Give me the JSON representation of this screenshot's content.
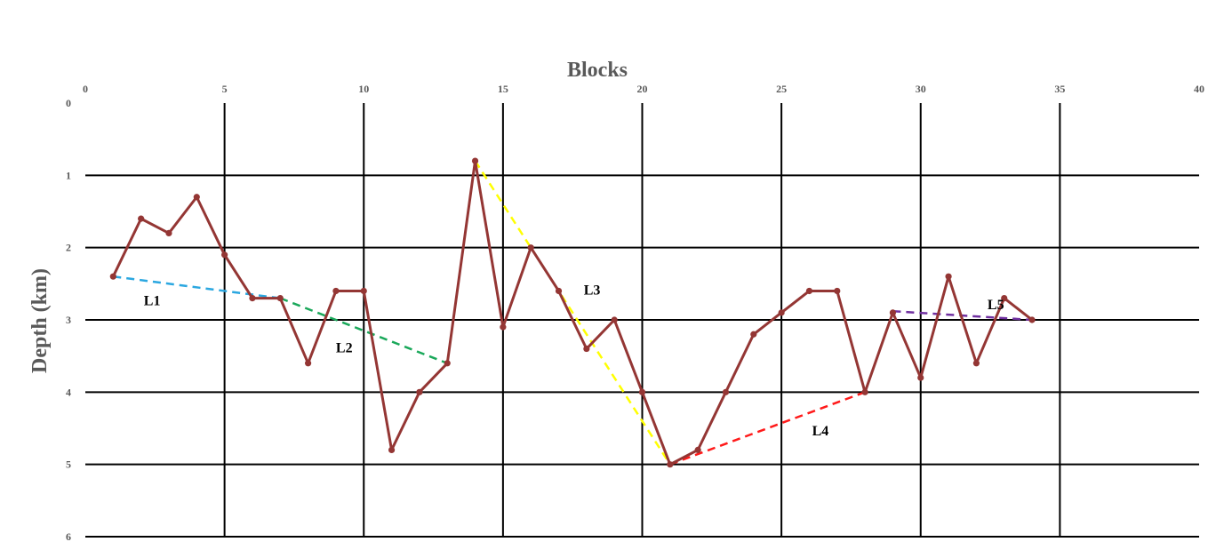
{
  "chart_data": {
    "type": "line",
    "xlabel": "Blocks",
    "ylabel": "Depth (km)",
    "xlim": [
      0,
      40
    ],
    "ylim": [
      0,
      6
    ],
    "y_reversed": true,
    "x_axis_position": "top",
    "x_ticks": [
      0,
      5,
      10,
      15,
      20,
      25,
      30,
      35,
      40
    ],
    "y_ticks": [
      0,
      1,
      2,
      3,
      4,
      5,
      6
    ],
    "grid": true,
    "series": [
      {
        "color": "#943634",
        "points": [
          [
            1,
            2.4
          ],
          [
            2,
            1.6
          ],
          [
            3,
            1.8
          ],
          [
            4,
            1.3
          ],
          [
            5,
            2.1
          ],
          [
            6,
            2.7
          ],
          [
            7,
            2.7
          ],
          [
            8,
            3.6
          ],
          [
            9,
            2.6
          ],
          [
            10,
            2.6
          ],
          [
            11,
            4.8
          ],
          [
            12,
            4.0
          ],
          [
            13,
            3.6
          ],
          [
            14,
            0.8
          ],
          [
            15,
            3.1
          ],
          [
            16,
            2.0
          ],
          [
            17,
            2.6
          ],
          [
            18,
            3.4
          ],
          [
            19,
            3.0
          ],
          [
            20,
            4.0
          ],
          [
            21,
            5.0
          ],
          [
            22,
            4.8
          ],
          [
            23,
            4.0
          ],
          [
            24,
            3.2
          ],
          [
            25,
            2.9
          ],
          [
            26,
            2.6
          ],
          [
            27,
            2.6
          ],
          [
            28,
            4.0
          ],
          [
            29,
            2.9
          ],
          [
            30,
            3.8
          ],
          [
            31,
            2.4
          ],
          [
            32,
            3.6
          ],
          [
            33,
            2.7
          ],
          [
            34,
            3.0
          ]
        ]
      }
    ],
    "annotations": [
      {
        "label": "L1",
        "color": "#2BA7E0",
        "dashed": true,
        "from": [
          1,
          2.4
        ],
        "to": [
          7,
          2.7
        ],
        "label_at": [
          2.1,
          2.8
        ]
      },
      {
        "label": "L2",
        "color": "#1AA85A",
        "dashed": true,
        "from": [
          7,
          2.7
        ],
        "to": [
          13,
          3.6
        ],
        "label_at": [
          9,
          3.45
        ]
      },
      {
        "label": "L3",
        "color": "#FFFF00",
        "dashed": true,
        "from": [
          14,
          0.8
        ],
        "to": [
          21,
          5.0
        ],
        "label_at": [
          17.9,
          2.65
        ]
      },
      {
        "label": "L4",
        "color": "#FF1A1A",
        "dashed": true,
        "from": [
          21,
          5.0
        ],
        "to": [
          28,
          4.0
        ],
        "label_at": [
          26.1,
          4.6
        ]
      },
      {
        "label": "L5",
        "color": "#7030A0",
        "dashed": true,
        "from": [
          29,
          2.88
        ],
        "to": [
          34,
          3.0
        ],
        "label_at": [
          32.4,
          2.85
        ]
      }
    ]
  }
}
